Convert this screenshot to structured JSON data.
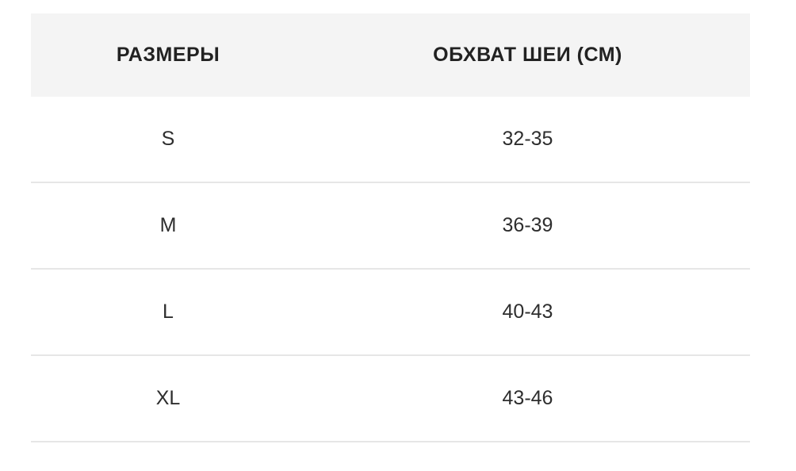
{
  "table": {
    "headers": [
      "РАЗМЕРЫ",
      "ОБХВАТ ШЕИ (СМ)"
    ],
    "rows": [
      [
        "S",
        "32-35"
      ],
      [
        "M",
        "36-39"
      ],
      [
        "L",
        "40-43"
      ],
      [
        "XL",
        "43-46"
      ]
    ]
  }
}
